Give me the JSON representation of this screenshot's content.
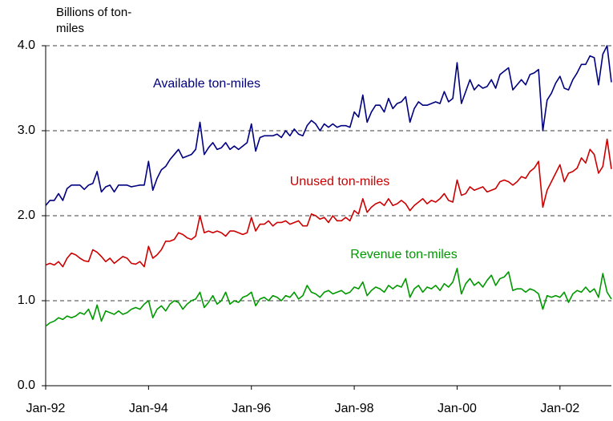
{
  "chart_data": {
    "type": "line",
    "y_label": "Billions of ton-miles",
    "categories": [
      "Jan-92",
      null,
      null,
      null,
      null,
      null,
      null,
      null,
      null,
      null,
      null,
      null,
      null,
      null,
      null,
      null,
      null,
      null,
      null,
      null,
      null,
      null,
      null,
      null,
      "Jan-94",
      null,
      null,
      null,
      null,
      null,
      null,
      null,
      null,
      null,
      null,
      null,
      null,
      null,
      null,
      null,
      null,
      null,
      null,
      null,
      null,
      null,
      null,
      null,
      "Jan-96",
      null,
      null,
      null,
      null,
      null,
      null,
      null,
      null,
      null,
      null,
      null,
      null,
      null,
      null,
      null,
      null,
      null,
      null,
      null,
      null,
      null,
      null,
      null,
      "Jan-98",
      null,
      null,
      null,
      null,
      null,
      null,
      null,
      null,
      null,
      null,
      null,
      null,
      null,
      null,
      null,
      null,
      null,
      null,
      null,
      null,
      null,
      null,
      null,
      "Jan-00",
      null,
      null,
      null,
      null,
      null,
      null,
      null,
      null,
      null,
      null,
      null,
      null,
      null,
      null,
      null,
      null,
      null,
      null,
      null,
      null,
      null,
      null,
      null,
      "Jan-02",
      null,
      null,
      null,
      null,
      null,
      null,
      null,
      null,
      null,
      null,
      null,
      null
    ],
    "series": [
      {
        "name": "Available ton-miles",
        "color": "#000080",
        "values": [
          2.12,
          2.18,
          2.18,
          2.26,
          2.18,
          2.32,
          2.36,
          2.36,
          2.36,
          2.31,
          2.36,
          2.38,
          2.52,
          2.28,
          2.34,
          2.36,
          2.28,
          2.36,
          2.36,
          2.36,
          2.34,
          2.35,
          2.36,
          2.36,
          2.64,
          2.3,
          2.44,
          2.54,
          2.58,
          2.66,
          2.72,
          2.78,
          2.68,
          2.7,
          2.72,
          2.78,
          3.1,
          2.72,
          2.8,
          2.86,
          2.78,
          2.8,
          2.86,
          2.78,
          2.82,
          2.78,
          2.82,
          2.86,
          3.08,
          2.76,
          2.92,
          2.94,
          2.94,
          2.94,
          2.96,
          2.92,
          3.0,
          2.94,
          3.02,
          2.96,
          2.94,
          3.06,
          3.12,
          3.08,
          3.0,
          3.08,
          3.04,
          3.08,
          3.04,
          3.06,
          3.06,
          3.04,
          3.22,
          3.16,
          3.42,
          3.1,
          3.22,
          3.3,
          3.3,
          3.22,
          3.38,
          3.26,
          3.32,
          3.34,
          3.4,
          3.1,
          3.26,
          3.34,
          3.3,
          3.3,
          3.32,
          3.34,
          3.32,
          3.46,
          3.34,
          3.38,
          3.8,
          3.32,
          3.46,
          3.6,
          3.48,
          3.54,
          3.5,
          3.52,
          3.6,
          3.5,
          3.66,
          3.7,
          3.74,
          3.48,
          3.54,
          3.6,
          3.54,
          3.66,
          3.68,
          3.72,
          3.0,
          3.36,
          3.44,
          3.56,
          3.64,
          3.5,
          3.48,
          3.6,
          3.68,
          3.78,
          3.78,
          3.88,
          3.86,
          3.54,
          3.9,
          4.0,
          3.57
        ]
      },
      {
        "name": "Unused ton-miles",
        "color": "#cc0000",
        "values": [
          1.42,
          1.44,
          1.42,
          1.46,
          1.4,
          1.5,
          1.56,
          1.54,
          1.5,
          1.47,
          1.46,
          1.6,
          1.57,
          1.52,
          1.46,
          1.5,
          1.44,
          1.48,
          1.52,
          1.5,
          1.44,
          1.43,
          1.46,
          1.4,
          1.64,
          1.5,
          1.54,
          1.6,
          1.7,
          1.7,
          1.72,
          1.8,
          1.78,
          1.74,
          1.72,
          1.76,
          2.0,
          1.8,
          1.82,
          1.8,
          1.82,
          1.8,
          1.76,
          1.82,
          1.82,
          1.8,
          1.78,
          1.8,
          1.98,
          1.82,
          1.9,
          1.9,
          1.94,
          1.88,
          1.92,
          1.92,
          1.94,
          1.9,
          1.92,
          1.94,
          1.88,
          1.88,
          2.02,
          2.0,
          1.96,
          1.98,
          1.92,
          2.0,
          1.94,
          1.94,
          1.98,
          1.94,
          2.06,
          2.02,
          2.2,
          2.04,
          2.1,
          2.14,
          2.16,
          2.12,
          2.2,
          2.12,
          2.14,
          2.18,
          2.14,
          2.06,
          2.12,
          2.16,
          2.2,
          2.14,
          2.18,
          2.16,
          2.2,
          2.26,
          2.18,
          2.16,
          2.42,
          2.24,
          2.26,
          2.34,
          2.3,
          2.32,
          2.34,
          2.28,
          2.3,
          2.32,
          2.4,
          2.42,
          2.4,
          2.36,
          2.4,
          2.46,
          2.44,
          2.52,
          2.56,
          2.64,
          2.1,
          2.3,
          2.4,
          2.5,
          2.6,
          2.4,
          2.5,
          2.52,
          2.56,
          2.68,
          2.62,
          2.78,
          2.72,
          2.5,
          2.58,
          2.9,
          2.55
        ]
      },
      {
        "name": "Revenue ton-miles",
        "color": "#009900",
        "values": [
          0.7,
          0.74,
          0.76,
          0.8,
          0.78,
          0.82,
          0.8,
          0.82,
          0.86,
          0.84,
          0.9,
          0.78,
          0.95,
          0.76,
          0.88,
          0.86,
          0.84,
          0.88,
          0.84,
          0.86,
          0.9,
          0.92,
          0.9,
          0.96,
          1.0,
          0.8,
          0.9,
          0.94,
          0.88,
          0.96,
          1.0,
          0.98,
          0.9,
          0.96,
          1.0,
          1.02,
          1.1,
          0.92,
          0.98,
          1.06,
          0.96,
          1.0,
          1.1,
          0.96,
          1.0,
          0.98,
          1.04,
          1.06,
          1.1,
          0.94,
          1.02,
          1.04,
          1.0,
          1.06,
          1.04,
          1.0,
          1.06,
          1.04,
          1.1,
          1.02,
          1.06,
          1.18,
          1.1,
          1.08,
          1.04,
          1.1,
          1.12,
          1.08,
          1.1,
          1.12,
          1.08,
          1.1,
          1.16,
          1.14,
          1.22,
          1.06,
          1.12,
          1.16,
          1.14,
          1.1,
          1.18,
          1.14,
          1.18,
          1.16,
          1.26,
          1.04,
          1.14,
          1.18,
          1.1,
          1.16,
          1.14,
          1.18,
          1.12,
          1.2,
          1.16,
          1.22,
          1.38,
          1.08,
          1.2,
          1.26,
          1.18,
          1.22,
          1.16,
          1.24,
          1.3,
          1.18,
          1.26,
          1.28,
          1.34,
          1.12,
          1.14,
          1.14,
          1.1,
          1.14,
          1.12,
          1.08,
          0.9,
          1.06,
          1.04,
          1.06,
          1.04,
          1.1,
          0.98,
          1.08,
          1.12,
          1.1,
          1.16,
          1.1,
          1.14,
          1.04,
          1.32,
          1.1,
          1.02
        ]
      }
    ],
    "ylim": [
      0,
      4
    ],
    "yticks": [
      {
        "value": 0,
        "label": "0.0"
      },
      {
        "value": 1,
        "label": "1.0"
      },
      {
        "value": 2,
        "label": "2.0"
      },
      {
        "value": 3,
        "label": "3.0"
      },
      {
        "value": 4,
        "label": "4.0"
      }
    ],
    "grid": true
  }
}
